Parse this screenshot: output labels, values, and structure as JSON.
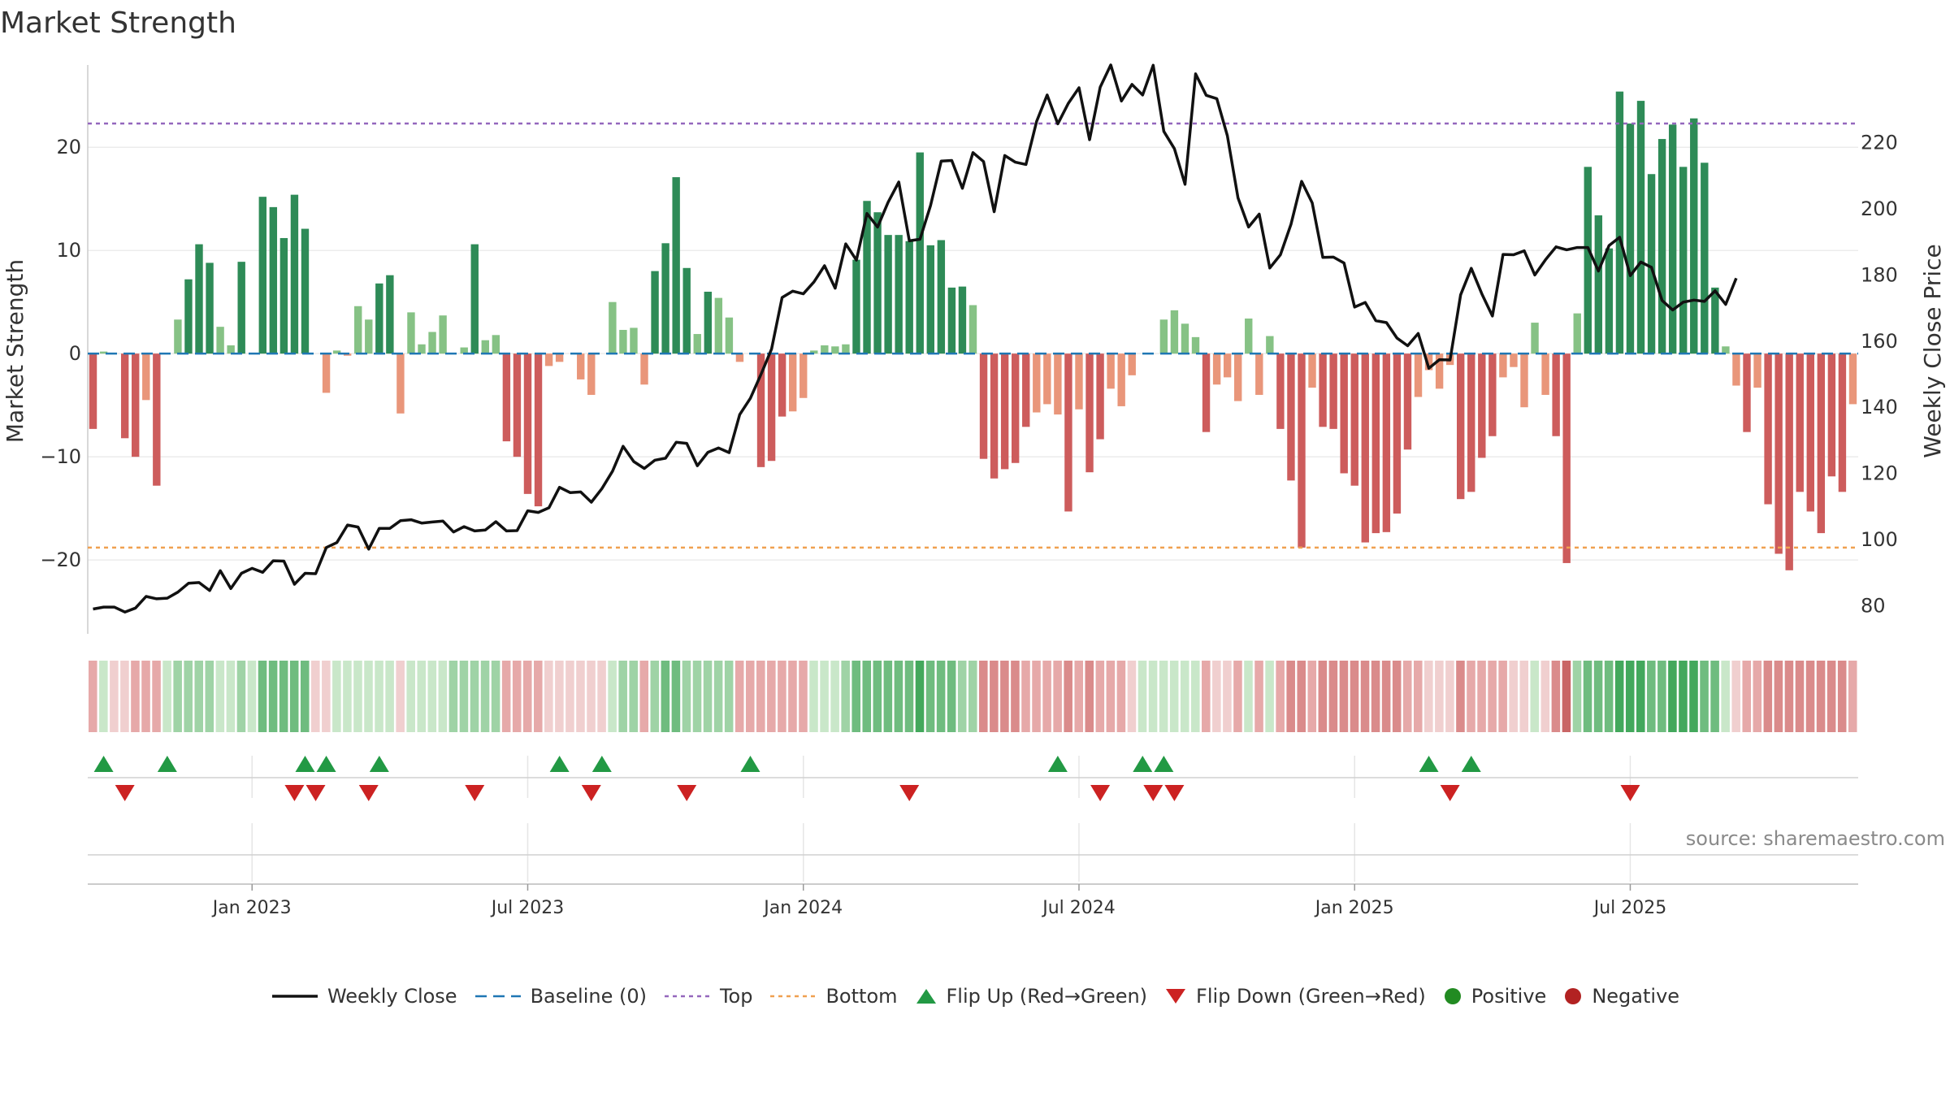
{
  "title": "Market Strength",
  "source": "source: sharemaestro.com",
  "colors": {
    "pos_strong": "#2e8b57",
    "pos_light": "#86c285",
    "neg_strong": "#cd5c5c",
    "neg_light": "#e9967a",
    "close_line": "#111111",
    "baseline": "#1f77b4",
    "top": "#9467bd",
    "bottom": "#f0a050",
    "flip_up": "#229944",
    "flip_down": "#cc2222",
    "positive": "#228b22",
    "negative": "#b22222"
  },
  "legend": [
    {
      "key": "close",
      "label": "Weekly Close",
      "icon": "line-solid"
    },
    {
      "key": "baseline",
      "label": "Baseline (0)",
      "icon": "line-dashed"
    },
    {
      "key": "top",
      "label": "Top",
      "icon": "line-dotted"
    },
    {
      "key": "bottom",
      "label": "Bottom",
      "icon": "line-dotted"
    },
    {
      "key": "flip_up",
      "label": "Flip Up (Red→Green)",
      "icon": "triangle-up"
    },
    {
      "key": "flip_down",
      "label": "Flip Down (Green→Red)",
      "icon": "triangle-down"
    },
    {
      "key": "positive",
      "label": "Positive",
      "icon": "circle"
    },
    {
      "key": "negative",
      "label": "Negative",
      "icon": "circle"
    }
  ],
  "chart_data": {
    "type": "bar",
    "ylabel_left": "Market Strength",
    "ylabel_right": "Weekly Close Price",
    "y_left_ticks": [
      -20,
      -10,
      0,
      10,
      20
    ],
    "y_left_range": [
      -27,
      27.5
    ],
    "y_right_ticks": [
      80,
      100,
      120,
      140,
      160,
      180,
      200,
      220
    ],
    "y_right_range": [
      72,
      242
    ],
    "x_tick_labels": [
      "Jan 2023",
      "Jul 2023",
      "Jan 2024",
      "Jul 2024",
      "Jan 2025",
      "Jul 2025"
    ],
    "x_tick_weeks": [
      15,
      41,
      67,
      93,
      119,
      145
    ],
    "top_line": 22.3,
    "bottom_line": -18.8,
    "baseline": 0,
    "strength": [
      -7.3,
      0.2,
      0,
      -8.2,
      -10,
      -4.5,
      -12.8,
      0,
      3.3,
      7.2,
      10.6,
      8.8,
      2.6,
      0.8,
      8.9,
      0,
      15.2,
      14.2,
      11.2,
      15.4,
      12.1,
      0,
      -3.8,
      0.3,
      -0.2,
      4.6,
      3.3,
      6.8,
      7.6,
      -5.8,
      4,
      0.9,
      2.1,
      3.7,
      0,
      0.6,
      10.6,
      1.3,
      1.8,
      -8.5,
      -10,
      -13.6,
      -14.8,
      -1.2,
      -0.8,
      0,
      -2.5,
      -4,
      0,
      5,
      2.3,
      2.5,
      -3,
      8,
      10.7,
      17.1,
      8.3,
      1.9,
      6,
      5.4,
      3.5,
      -0.8,
      0,
      -11,
      -10.4,
      -6.1,
      -5.6,
      -4.3,
      0.3,
      0.8,
      0.7,
      0.9,
      9.1,
      14.8,
      13.7,
      11.5,
      11.5,
      10.9,
      19.5,
      10.5,
      11,
      6.4,
      6.5,
      4.7,
      -10.2,
      -12.1,
      -11.2,
      -10.6,
      -7.1,
      -5.7,
      -4.9,
      -5.9,
      -15.3,
      -5.4,
      -11.5,
      -8.3,
      -3.4,
      -5.1,
      -2.1,
      0,
      0,
      3.3,
      4.2,
      2.9,
      1.6,
      -7.6,
      -3,
      -2.3,
      -4.6,
      3.4,
      -4,
      1.7,
      -7.3,
      -12.3,
      -18.8,
      -3.3,
      -7.1,
      -7.3,
      -11.6,
      -12.8,
      -18.3,
      -17.4,
      -17.3,
      -15.5,
      -9.3,
      -4.2,
      -1.6,
      -3.4,
      -1.1,
      -14.1,
      -13.4,
      -10.1,
      -8,
      -2.3,
      -1.3,
      -5.2,
      3,
      -4,
      -8,
      -20.3,
      3.9,
      18.1,
      13.4,
      10.2,
      25.4,
      22.3,
      24.5,
      17.4,
      20.8,
      22.2,
      18.1,
      22.8,
      18.5,
      6.4,
      0.7,
      -3.1,
      -7.6,
      -3.3,
      -14.6,
      -19.4,
      -21,
      -13.4,
      -15.3,
      -17.4,
      -11.9,
      -13.4,
      -4.9
    ],
    "close": [
      79,
      79.6,
      79.6,
      78.1,
      79.3,
      82.8,
      82.1,
      82.3,
      84.1,
      86.8,
      87,
      84.6,
      90.6,
      85.2,
      89.8,
      91.3,
      90.1,
      93.6,
      93.5,
      86.5,
      89.8,
      89.7,
      97.6,
      99.1,
      104.4,
      103.8,
      97.1,
      103.4,
      103.4,
      105.7,
      106,
      105,
      105.3,
      105.6,
      102.3,
      103.9,
      102.6,
      102.9,
      105.4,
      102.6,
      102.7,
      108.7,
      108.2,
      109.6,
      115.8,
      114.2,
      114.4,
      111.3,
      115.4,
      120.7,
      128.2,
      123.6,
      121.5,
      124,
      124.6,
      129.4,
      129.1,
      122.3,
      126.4,
      127.7,
      126.3,
      137.8,
      142.7,
      149.9,
      157.6,
      173.2,
      175.1,
      174.3,
      177.9,
      182.8,
      176,
      189.4,
      184.5,
      198.6,
      194.5,
      202,
      208.1,
      190.3,
      190.8,
      201,
      214.4,
      214.6,
      206.2,
      217,
      214.3,
      199.1,
      216.1,
      214.1,
      213.4,
      226.4,
      234.4,
      225.7,
      231.9,
      236.6,
      220.9,
      236.8,
      243.5,
      232.6,
      237.6,
      234.4,
      243.4,
      223.4,
      218.2,
      207.4,
      240.8,
      234.3,
      233.3,
      222.1,
      203.3,
      194.5,
      198.4,
      182.1,
      186.1,
      195.3,
      208.3,
      201.8,
      185.3,
      185.4,
      183.6,
      170.3,
      171.7,
      166.2,
      165.6,
      160.9,
      158.6,
      162.3,
      151.8,
      154.4,
      154.3,
      174,
      182,
      174.3,
      167.6,
      186.2,
      186.1,
      187.3,
      180,
      184.6,
      188.5,
      187.6,
      188.3,
      188.3,
      181.2,
      188.9,
      191.4,
      179.8,
      183.9,
      182.3,
      172.3,
      169.4,
      171.8,
      172.4,
      172,
      175.2,
      171.1,
      179
    ],
    "tile_shades": [
      -2,
      1,
      -1,
      -1,
      -2,
      -2,
      -2,
      1,
      2,
      2,
      2,
      2,
      1,
      1,
      2,
      1,
      3,
      3,
      3,
      3,
      3,
      -1,
      -1,
      1,
      1,
      1,
      1,
      1,
      1,
      -1,
      1,
      1,
      1,
      1,
      2,
      2,
      2,
      2,
      2,
      -2,
      -2,
      -2,
      -2,
      -1,
      -1,
      -1,
      -1,
      -1,
      -1,
      1,
      2,
      2,
      -2,
      2,
      3,
      3,
      2,
      2,
      2,
      2,
      2,
      -2,
      -2,
      -2,
      -2,
      -2,
      -2,
      -2,
      1,
      1,
      1,
      2,
      3,
      3,
      3,
      3,
      3,
      3,
      4,
      3,
      3,
      3,
      2,
      2,
      -3,
      -3,
      -3,
      -3,
      -2,
      -2,
      -2,
      -2,
      -3,
      -2,
      -3,
      -2,
      -2,
      -2,
      -1,
      1,
      1,
      1,
      1,
      1,
      1,
      -2,
      -1,
      -1,
      -2,
      1,
      -2,
      1,
      -2,
      -3,
      -3,
      -2,
      -3,
      -3,
      -3,
      -3,
      -3,
      -3,
      -3,
      -3,
      -2,
      -2,
      -1,
      -1,
      -1,
      -3,
      -2,
      -2,
      -2,
      -2,
      -1,
      -1,
      1,
      -1,
      -3,
      -4,
      2,
      3,
      3,
      3,
      4,
      4,
      4,
      3,
      3,
      4,
      4,
      4,
      3,
      3,
      1,
      -1,
      -2,
      -2,
      -3,
      -3,
      -3,
      -3,
      -3,
      -3,
      -3,
      -3,
      -2
    ],
    "flip_up_weeks": [
      1,
      7,
      20,
      22,
      27,
      44,
      48,
      62,
      91,
      99,
      101,
      126,
      130
    ],
    "flip_down_weeks": [
      3,
      19,
      21,
      26,
      36,
      47,
      56,
      77,
      95,
      100,
      102,
      128,
      145
    ]
  }
}
